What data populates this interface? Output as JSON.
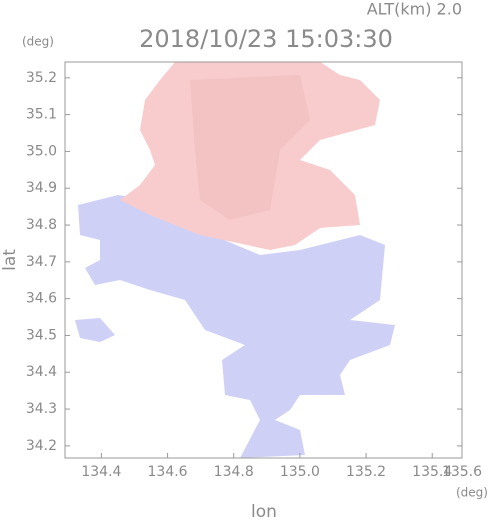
{
  "chart_data": {
    "type": "image",
    "title": "2018/10/23 15:03:30",
    "subtitle": "ALT(km)  2.0",
    "y_unit": "(deg)",
    "x_unit": "(deg)",
    "xlabel": "lon",
    "ylabel": "lat",
    "xlim": [
      134.29,
      135.49
    ],
    "xticks": [
      134.4,
      134.6,
      134.8,
      {
        "value": 135.0,
        "label": "135.0"
      },
      135.2,
      135.4,
      135.6
    ],
    "ylim": [
      34.167,
      35.243
    ],
    "yticks": [
      34.2,
      34.3,
      34.4,
      34.5,
      34.6,
      34.7,
      34.8,
      34.9,
      {
        "value": 35.0,
        "label": "35.0"
      },
      35.1,
      35.2
    ]
  }
}
